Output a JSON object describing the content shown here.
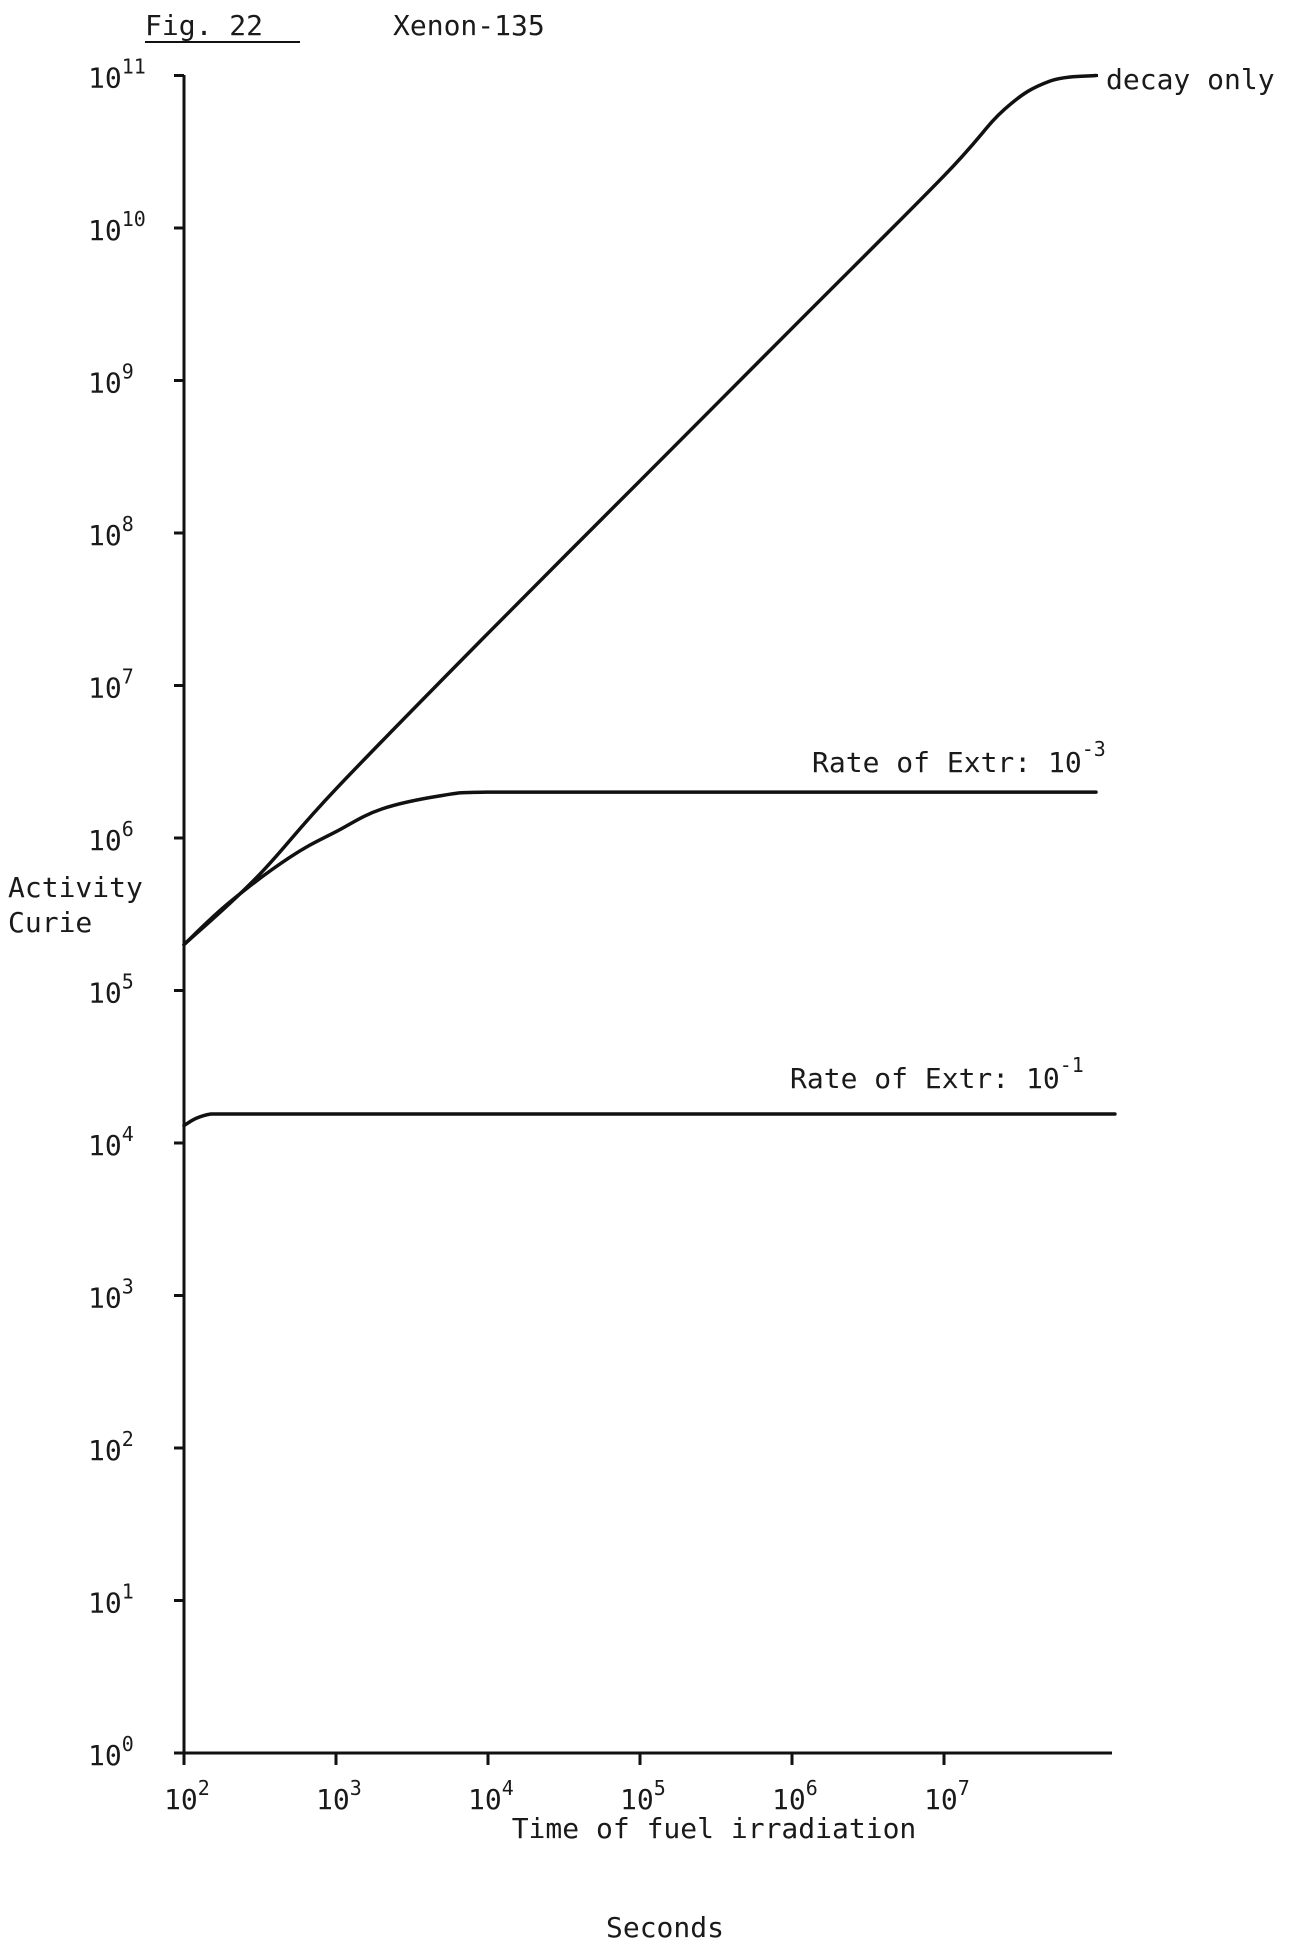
{
  "header": {
    "fig_label": "Fig. 22",
    "title": "Xenon-135"
  },
  "chart_data": {
    "type": "line",
    "title": "Xenon-135",
    "xlabel": "Time of fuel irradiation",
    "xunit": "Seconds",
    "ylabel": "Activity",
    "yunit": "Curie",
    "xscale": "log",
    "yscale": "log",
    "xlim": [
      100,
      100000000
    ],
    "ylim": [
      1,
      100000000000
    ],
    "x_ticks": [
      {
        "base": "10",
        "exp": "2",
        "value": 100
      },
      {
        "base": "10",
        "exp": "3",
        "value": 1000
      },
      {
        "base": "10",
        "exp": "4",
        "value": 10000
      },
      {
        "base": "10",
        "exp": "5",
        "value": 100000
      },
      {
        "base": "10",
        "exp": "6",
        "value": 1000000
      },
      {
        "base": "10",
        "exp": "7",
        "value": 10000000
      }
    ],
    "y_ticks": [
      {
        "base": "10",
        "exp": "0",
        "value": 1
      },
      {
        "base": "10",
        "exp": "1",
        "value": 10
      },
      {
        "base": "10",
        "exp": "2",
        "value": 100
      },
      {
        "base": "10",
        "exp": "3",
        "value": 1000
      },
      {
        "base": "10",
        "exp": "4",
        "value": 10000
      },
      {
        "base": "10",
        "exp": "5",
        "value": 100000
      },
      {
        "base": "10",
        "exp": "6",
        "value": 1000000
      },
      {
        "base": "10",
        "exp": "7",
        "value": 10000000
      },
      {
        "base": "10",
        "exp": "8",
        "value": 100000000
      },
      {
        "base": "10",
        "exp": "9",
        "value": 1000000000
      },
      {
        "base": "10",
        "exp": "10",
        "value": 10000000000
      },
      {
        "base": "10",
        "exp": "11",
        "value": 100000000000
      }
    ],
    "series": [
      {
        "name": "decay only",
        "label_text": "decay only",
        "label_exp": "",
        "x": [
          100,
          300,
          1000,
          10000,
          100000,
          1000000,
          10000000,
          25000000,
          50000000,
          100000000
        ],
        "y": [
          200000,
          550000,
          2100000,
          22000000,
          220000000,
          2200000000,
          22000000000,
          60000000000,
          92000000000,
          100000000000
        ]
      },
      {
        "name": "Rate of Extr: 10^-3",
        "label_text": "Rate of Extr:  10",
        "label_exp": "-3",
        "x": [
          100,
          200,
          500,
          1000,
          2000,
          5000,
          10000,
          100000,
          1000000,
          10000000,
          100000000
        ],
        "y": [
          200000,
          380000,
          750000,
          1100000,
          1550000,
          1900000,
          2000000,
          2000000,
          2000000,
          2000000,
          2000000
        ]
      },
      {
        "name": "Rate of Extr: 10^-1",
        "label_text": "Rate of Extr:  10",
        "label_exp": "-1",
        "x": [
          100,
          120,
          150,
          200,
          1000,
          10000,
          100000,
          1000000,
          10000000,
          100000000,
          130000000
        ],
        "y": [
          13000,
          14500,
          15500,
          15500,
          15500,
          15500,
          15500,
          15500,
          15500,
          15500,
          15500
        ]
      }
    ]
  }
}
